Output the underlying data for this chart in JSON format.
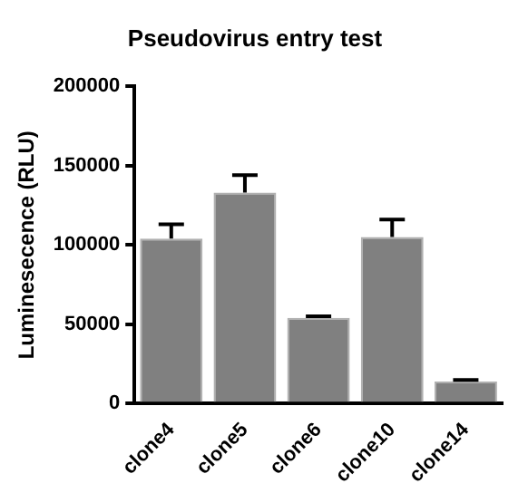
{
  "chart_data": {
    "type": "bar",
    "title": "Pseudovirus entry test",
    "ylabel": "Luminesecence (RLU)",
    "categories": [
      "clone4",
      "clone5",
      "clone6",
      "clone10",
      "clone14"
    ],
    "values": [
      104000,
      133000,
      54000,
      105000,
      14000
    ],
    "errors": [
      [
        104000,
        113000
      ],
      [
        133000,
        144000
      ],
      [
        54000,
        55000
      ],
      [
        105000,
        116000
      ],
      [
        14000,
        15000
      ]
    ],
    "color": "#808080",
    "ylim": [
      0,
      200000
    ],
    "yticks": [
      0,
      50000,
      100000,
      150000,
      200000
    ],
    "grid": false,
    "legend": false
  }
}
